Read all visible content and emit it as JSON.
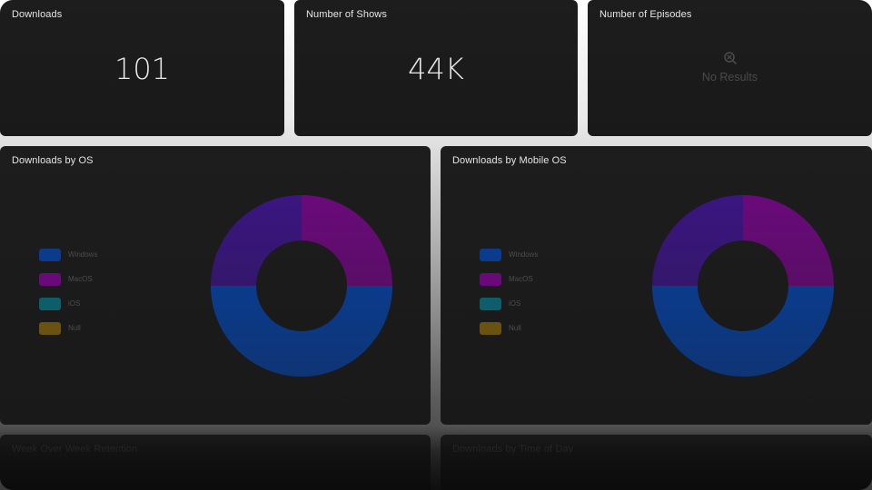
{
  "kpis": [
    {
      "title": "Downloads",
      "value": "101"
    },
    {
      "title": "Number of Shows",
      "value": "44K"
    },
    {
      "title": "Number of Episodes",
      "empty_text": "No Results"
    }
  ],
  "charts": [
    {
      "title": "Downloads by OS"
    },
    {
      "title": "Downloads by Mobile OS"
    }
  ],
  "legend": [
    {
      "label": "Windows",
      "color": "#0b3b8c"
    },
    {
      "label": "MacOS",
      "color": "#6a0a7a"
    },
    {
      "label": "iOS",
      "color": "#0d5d6b"
    },
    {
      "label": "Null",
      "color": "#6a5210"
    }
  ],
  "chart_data": [
    {
      "type": "pie",
      "title": "Downloads by OS",
      "categories": [
        "Windows",
        "MacOS",
        "iOS",
        "Null"
      ],
      "series": [
        {
          "values": [
            50,
            25,
            0,
            0
          ]
        }
      ],
      "extra_slice_color": "#3a1680",
      "extra_slice_value": 25
    },
    {
      "type": "pie",
      "title": "Downloads by Mobile OS",
      "categories": [
        "Windows",
        "MacOS",
        "iOS",
        "Null"
      ],
      "series": [
        {
          "values": [
            50,
            25,
            0,
            0
          ]
        }
      ],
      "extra_slice_color": "#3a1680",
      "extra_slice_value": 25
    }
  ],
  "lower_cards": [
    {
      "title": "Week Over Week Retention"
    },
    {
      "title": "Downloads by Time of Day"
    }
  ]
}
